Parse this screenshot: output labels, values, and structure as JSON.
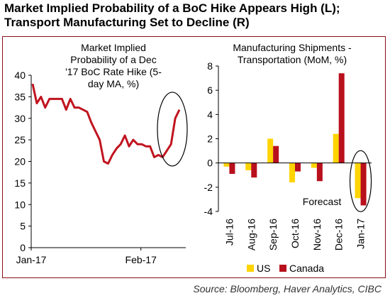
{
  "header": {
    "title_line1": "Market Implied Probability of a BoC Hike Appears High (L);",
    "title_line2": "Transport Manufacturing Set to Decline (R)"
  },
  "source": "Source: Bloomberg, Haver Analytics, CIBC",
  "colors": {
    "line": "#c0141f",
    "canada": "#b8101c",
    "us": "#ffd400",
    "frame": "#8a0e18"
  },
  "chart_data": [
    {
      "type": "line",
      "title": [
        "Market Implied",
        "Probability of a Dec",
        "'17 BoC Rate Hike (5-",
        "day MA, %)"
      ],
      "ylim": [
        0,
        40
      ],
      "yticks": [
        0,
        5,
        10,
        15,
        20,
        25,
        30,
        35,
        40
      ],
      "xtick_labels": [
        "Jan-17",
        "Feb-17"
      ],
      "xtick_index": [
        0,
        22
      ],
      "xlim": [
        0,
        31
      ],
      "grid": false,
      "series": [
        {
          "values": [
            38,
            33.5,
            35,
            32.5,
            34.5,
            34.5,
            34.5,
            34.5,
            32,
            34.5,
            32.5,
            32.5,
            32,
            31.5,
            29,
            27,
            25,
            20,
            19.5,
            21.5,
            23,
            24,
            26,
            23.5,
            25,
            24,
            24,
            23.5,
            23.5,
            21,
            21.5,
            21,
            22.5,
            24,
            30,
            32
          ]
        }
      ],
      "annotation": "ellipse around latest values"
    },
    {
      "type": "bar",
      "title": [
        "Manufacturing Shipments -",
        "Transportation (MoM, %)"
      ],
      "categories": [
        "Jul-16",
        "Aug-16",
        "Sep-16",
        "Oct-16",
        "Nov-16",
        "Dec-16",
        "Jan-17"
      ],
      "ylim": [
        -4,
        8
      ],
      "yticks": [
        -4,
        -2,
        0,
        2,
        4,
        6,
        8
      ],
      "grid": false,
      "series": [
        {
          "name": "US",
          "values": [
            -0.3,
            -0.6,
            2.0,
            -1.6,
            -0.4,
            2.4,
            -2.9
          ]
        },
        {
          "name": "Canada",
          "values": [
            -0.9,
            -1.2,
            1.4,
            -0.7,
            -1.5,
            7.4,
            -3.5
          ]
        }
      ],
      "annotations": [
        "Forecast"
      ],
      "legend_position": "bottom"
    }
  ]
}
